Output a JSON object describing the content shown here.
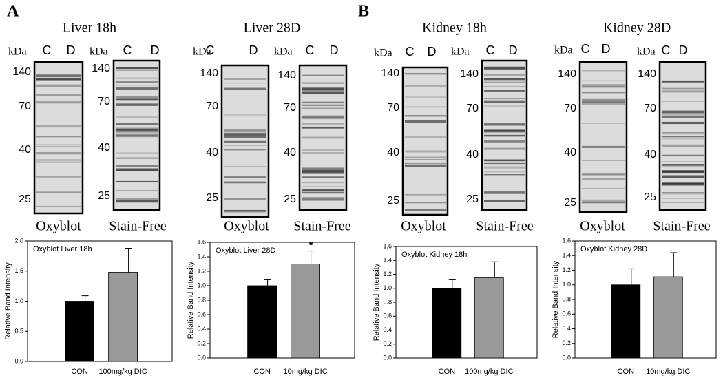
{
  "figure": {
    "panel_labels": [
      "A",
      "B"
    ],
    "groups": [
      {
        "title": "Liver 18h",
        "blots": [
          {
            "unit": "kDa",
            "lanes": [
              "C",
              "D"
            ],
            "markers": [
              "140",
              "70",
              "40",
              "25"
            ],
            "caption": "Oxyblot"
          },
          {
            "unit": "kDa",
            "lanes": [
              "C",
              "D"
            ],
            "markers": [
              "140",
              "70",
              "40",
              "25"
            ],
            "caption": "Stain-Free"
          }
        ]
      },
      {
        "title": "Liver 28D",
        "blots": [
          {
            "unit": "kDa",
            "lanes": [
              "C",
              "D"
            ],
            "markers": [
              "140",
              "70",
              "40",
              "25"
            ],
            "caption": "Oxyblot"
          },
          {
            "unit": "kDa",
            "lanes": [
              "C",
              "D"
            ],
            "markers": [
              "140",
              "70",
              "40",
              "25"
            ],
            "caption": "Stain-Free"
          }
        ]
      },
      {
        "title": "Kidney 18h",
        "blots": [
          {
            "unit": "kDa",
            "lanes": [
              "C",
              "D"
            ],
            "markers": [
              "140",
              "70",
              "40",
              "25"
            ],
            "caption": "Oxyblot"
          },
          {
            "unit": "kDa",
            "lanes": [
              "C",
              "D"
            ],
            "markers": [
              "140",
              "70",
              "40",
              "25"
            ],
            "caption": "Stain-Free"
          }
        ]
      },
      {
        "title": "Kidney 28D",
        "blots": [
          {
            "unit": "kDa",
            "lanes": [
              "C",
              "D"
            ],
            "markers": [
              "140",
              "70",
              "40",
              "25"
            ],
            "caption": "Oxyblot"
          },
          {
            "unit": "kDa",
            "lanes": [
              "C",
              "D"
            ],
            "markers": [
              "140",
              "70",
              "40",
              "25"
            ],
            "caption": "Stain-Free"
          }
        ]
      }
    ]
  },
  "chart_data": [
    {
      "type": "bar",
      "title": "Oxyblot Liver 18h",
      "ylabel": "Relative Band Intensity",
      "categories": [
        "CON",
        "100mg/kg DIC"
      ],
      "values": [
        1.0,
        1.48
      ],
      "errors": [
        0.09,
        0.4
      ],
      "colors": [
        "#000000",
        "#999999"
      ],
      "ylim": [
        0,
        2.0
      ],
      "yticks": [
        {
          "value": 0,
          "label": "0.0"
        },
        0.5,
        {
          "value": 1,
          "label": "1.0"
        },
        1.5,
        {
          "value": 2,
          "label": "2.0"
        }
      ]
    },
    {
      "type": "bar",
      "title": "Oxyblot Liver 28D",
      "ylabel": "Relative Band Intensity",
      "categories": [
        "CON",
        "10mg/kg DIC"
      ],
      "values": [
        1.0,
        1.3
      ],
      "errors": [
        0.09,
        0.18
      ],
      "colors": [
        "#000000",
        "#999999"
      ],
      "annotation": "*",
      "ylim": [
        0,
        1.6
      ],
      "yticks": [
        {
          "value": 0,
          "label": "0.0"
        },
        0.2,
        0.4,
        0.6,
        0.8,
        {
          "value": 1,
          "label": "1.0"
        },
        1.2,
        1.4,
        1.6
      ]
    },
    {
      "type": "bar",
      "title": "Oxyblot Kidney 18h",
      "ylabel": "Relative Band Intensity",
      "categories": [
        "CON",
        "100mg/kg DIC"
      ],
      "values": [
        1.0,
        1.15
      ],
      "errors": [
        0.13,
        0.23
      ],
      "colors": [
        "#000000",
        "#999999"
      ],
      "ylim": [
        0,
        1.6
      ],
      "yticks": [
        {
          "value": 0,
          "label": "0.0"
        },
        0.2,
        0.4,
        0.6,
        0.8,
        {
          "value": 1,
          "label": "1.0"
        },
        1.2,
        1.4,
        1.6
      ]
    },
    {
      "type": "bar",
      "title": "Oxyblot Kidney 28D",
      "ylabel": "Relative Band Intensity",
      "categories": [
        "CON",
        "10mg/kg DIC"
      ],
      "values": [
        1.0,
        1.11
      ],
      "errors": [
        0.22,
        0.33
      ],
      "colors": [
        "#000000",
        "#999999"
      ],
      "ylim": [
        0,
        1.6
      ],
      "yticks": [
        {
          "value": 0,
          "label": "0.0"
        },
        0.2,
        0.4,
        0.6,
        0.8,
        {
          "value": 1,
          "label": "1.0"
        },
        1.2,
        1.4,
        1.6
      ]
    }
  ]
}
